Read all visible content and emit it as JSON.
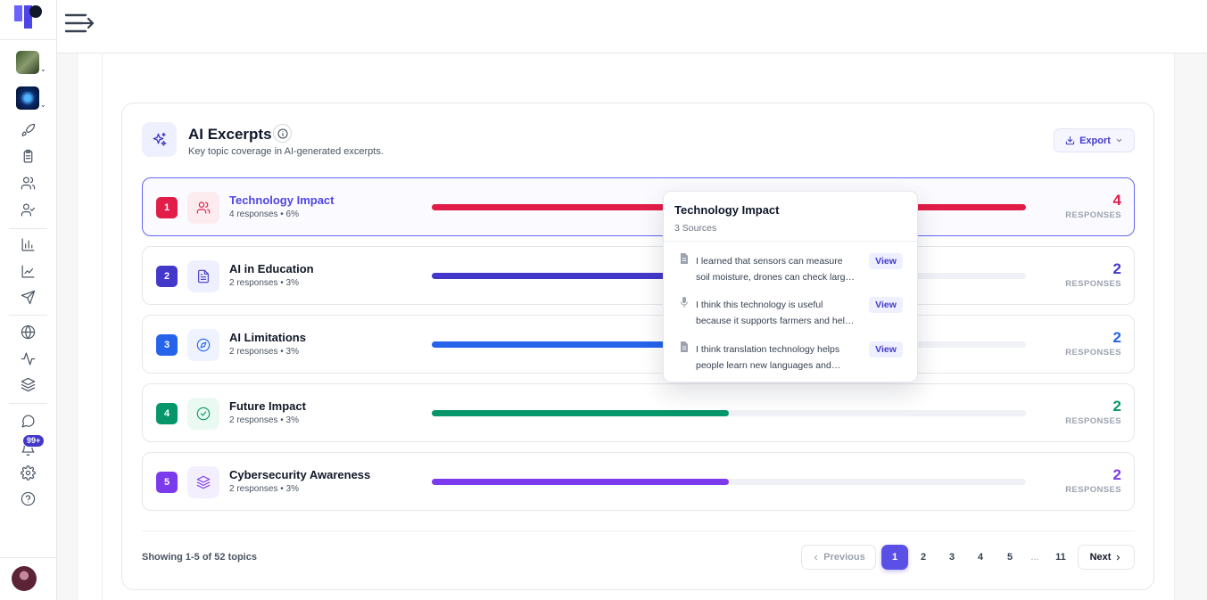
{
  "sidebar": {
    "nav_icons": [
      "rocket-icon",
      "clipboard-icon",
      "users-icon",
      "user-check-icon",
      "bar-chart-icon",
      "line-chart-icon",
      "send-icon",
      "globe-icon",
      "activity-icon",
      "layers-icon",
      "message-circle-icon",
      "bell-icon",
      "settings-icon",
      "help-circle-icon"
    ],
    "notification_badge": "99+"
  },
  "card": {
    "title": "AI Excerpts",
    "subtitle": "Key topic coverage in AI-generated excerpts.",
    "export_label": "Export"
  },
  "topics": [
    {
      "rank": "1",
      "title": "Technology Impact",
      "meta": "4 responses • 6%",
      "count": "4",
      "count_label": "RESPONSES",
      "fraction": 1.0,
      "color": "#e11d48",
      "icon_bg": "#fdecef",
      "icon": "users-icon"
    },
    {
      "rank": "2",
      "title": "AI in Education",
      "meta": "2 responses • 3%",
      "count": "2",
      "count_label": "RESPONSES",
      "fraction": 0.5,
      "color": "#4338ca",
      "icon_bg": "#eef0ff",
      "icon": "file-text-icon"
    },
    {
      "rank": "3",
      "title": "AI Limitations",
      "meta": "2 responses • 3%",
      "count": "2",
      "count_label": "RESPONSES",
      "fraction": 0.5,
      "color": "#2563eb",
      "icon_bg": "#eef3ff",
      "icon": "compass-icon"
    },
    {
      "rank": "4",
      "title": "Future Impact",
      "meta": "2 responses • 3%",
      "count": "2",
      "count_label": "RESPONSES",
      "fraction": 0.5,
      "color": "#059669",
      "icon_bg": "#eafaf3",
      "icon": "check-circle-icon"
    },
    {
      "rank": "5",
      "title": "Cybersecurity Awareness",
      "meta": "2 responses • 3%",
      "count": "2",
      "count_label": "RESPONSES",
      "fraction": 0.5,
      "color": "#7c3aed",
      "icon_bg": "#f4efff",
      "icon": "layers-icon"
    }
  ],
  "footer": {
    "showing": "Showing 1-5 of 52 topics",
    "previous": "Previous",
    "next": "Next",
    "pages": [
      "1",
      "2",
      "3",
      "4",
      "5"
    ],
    "ellipsis": "...",
    "last_page": "11",
    "current_page": "1"
  },
  "tooltip": {
    "title": "Technology Impact",
    "subtitle": "3 Sources",
    "view_label": "View",
    "items": [
      {
        "icon": "file-icon",
        "line1": "I learned that sensors can measure",
        "line2": "soil moisture, drones can check larg…"
      },
      {
        "icon": "mic-icon",
        "line1": "I think this technology is useful",
        "line2": "because it supports farmers and hel…"
      },
      {
        "icon": "file-icon",
        "line1": "I think translation technology helps",
        "line2": "people learn new languages and…"
      }
    ]
  }
}
